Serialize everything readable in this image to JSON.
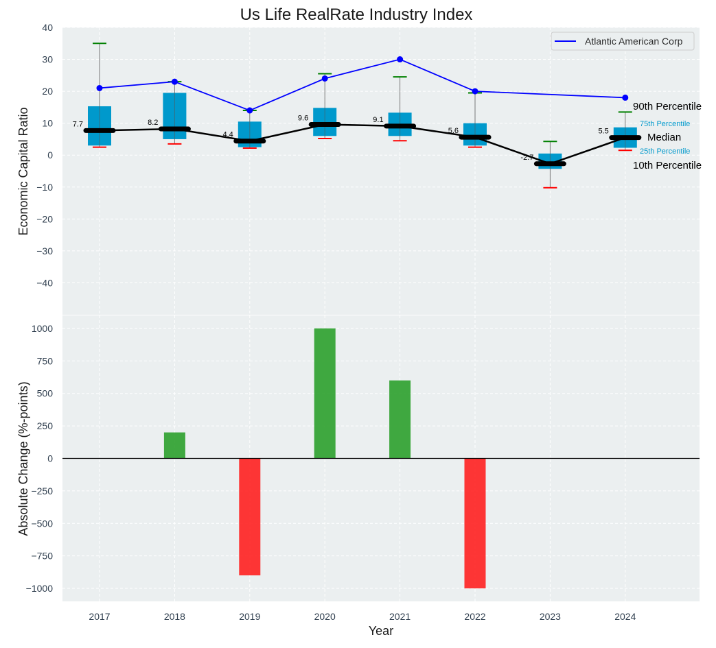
{
  "chart_data": [
    {
      "type": "box",
      "title": "Us Life RealRate Industry Index",
      "xlabel": "",
      "ylabel": "Economic Capital Ratio",
      "ylim": [
        -50,
        40
      ],
      "yticks": [
        40,
        30,
        20,
        10,
        0,
        -10,
        -20,
        -30,
        -40
      ],
      "categories": [
        "2017",
        "2018",
        "2019",
        "2020",
        "2021",
        "2022",
        "2023",
        "2024"
      ],
      "grid": true,
      "percentiles": {
        "p10": [
          2.5,
          3.5,
          2.2,
          5.2,
          4.5,
          2.5,
          -10.2,
          1.5
        ],
        "p25": [
          3.0,
          5.0,
          2.5,
          6.0,
          6.0,
          3.0,
          -4.3,
          2.3
        ],
        "median": [
          7.7,
          8.2,
          4.4,
          9.6,
          9.1,
          5.6,
          -2.7,
          5.5
        ],
        "p75": [
          15.3,
          19.5,
          10.5,
          14.8,
          13.3,
          10.0,
          0.5,
          8.7
        ],
        "p90": [
          35.0,
          23.0,
          14.0,
          25.5,
          24.5,
          19.5,
          4.3,
          13.5
        ]
      },
      "median_labels": [
        "7.7",
        "8.2",
        "4.4",
        "9.6",
        "9.1",
        "5.6",
        "-2.7",
        "5.5"
      ],
      "series": [
        {
          "name": "Atlantic American Corp",
          "x": [
            "2017",
            "2018",
            "2019",
            "2020",
            "2021",
            "2022",
            "2024"
          ],
          "values": [
            21,
            23,
            14,
            24,
            30,
            20,
            18
          ],
          "color": "#0000ff"
        }
      ],
      "legend": {
        "position": "top-right",
        "entries": [
          "Atlantic American Corp"
        ]
      },
      "annotations": {
        "p90": "90th Percentile",
        "p75": "75th Percentile",
        "median": "Median",
        "p25": "25th Percentile",
        "p10": "10th Percentile"
      },
      "colors": {
        "box": "#0099cc",
        "p90": "#008000",
        "p10": "#ff0000",
        "median": "#000000"
      }
    },
    {
      "type": "bar",
      "xlabel": "Year",
      "ylabel": "Absolute Change (%-points)",
      "ylim": [
        -1100,
        1100
      ],
      "yticks": [
        1000,
        750,
        500,
        250,
        0,
        -250,
        -500,
        -750,
        -1000
      ],
      "ytick_labels": [
        "1000",
        "750",
        "500",
        "250",
        "0",
        "−250",
        "−500",
        "−750",
        "−1000"
      ],
      "categories": [
        "2017",
        "2018",
        "2019",
        "2020",
        "2021",
        "2022",
        "2023",
        "2024"
      ],
      "values": [
        0,
        200,
        -900,
        1000,
        600,
        -1000,
        0,
        0
      ],
      "grid": true,
      "colors": {
        "positive": "#2ca02c",
        "negative": "#ff2020"
      }
    }
  ]
}
